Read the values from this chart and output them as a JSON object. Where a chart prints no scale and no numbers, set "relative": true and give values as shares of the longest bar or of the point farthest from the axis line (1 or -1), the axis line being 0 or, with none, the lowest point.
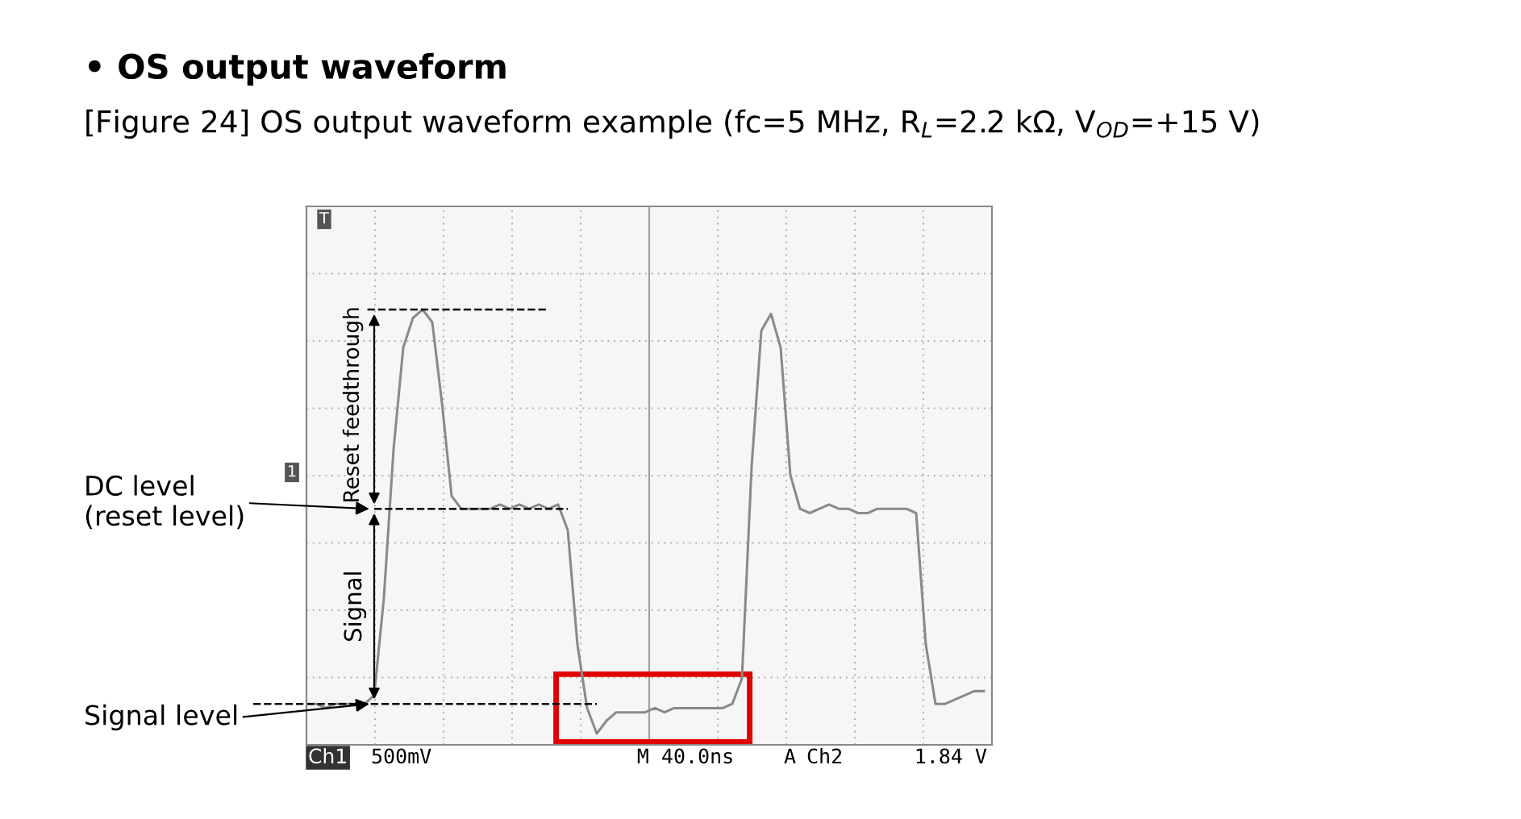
{
  "chart_data": {
    "type": "line",
    "title": "• OS output waveform",
    "subtitle": "[Figure 24] OS output waveform example (fc=5 MHz, R$_{L}$=2.2 kΩ, V$_{OD}$=+15 V)",
    "relative": true,
    "grid": true,
    "marker": "none",
    "line_style": "solid",
    "categories": [
      null,
      null,
      null,
      null,
      null,
      null,
      null,
      null,
      null,
      null,
      null,
      null,
      null,
      null,
      null,
      null,
      null,
      null,
      null,
      null,
      null,
      null,
      null,
      null,
      null,
      null,
      null,
      null,
      null,
      null,
      null,
      null,
      null,
      null,
      null,
      null,
      null,
      null,
      null,
      null,
      null,
      null,
      null,
      null,
      null,
      null,
      null,
      null,
      null,
      null,
      null,
      null,
      null,
      null,
      null,
      null,
      null,
      null,
      null,
      null,
      null,
      null,
      null,
      null,
      null,
      null,
      null,
      null,
      null,
      null,
      null
    ],
    "series": [
      {
        "color": "#8a8a8a",
        "values": [
          0.07,
          0.07,
          0.06,
          0.07,
          0.07,
          0.07,
          0.07,
          0.09,
          0.32,
          0.67,
          0.91,
          0.98,
          1,
          0.97,
          0.78,
          0.56,
          0.53,
          0.53,
          0.53,
          0.53,
          0.54,
          0.53,
          0.54,
          0.53,
          0.54,
          0.53,
          0.54,
          0.48,
          0.21,
          0.06,
          0,
          0.03,
          0.05,
          0.05,
          0.05,
          0.05,
          0.06,
          0.05,
          0.06,
          0.06,
          0.06,
          0.06,
          0.06,
          0.06,
          0.07,
          0.13,
          0.63,
          0.95,
          0.99,
          0.91,
          0.61,
          0.53,
          0.52,
          0.53,
          0.54,
          0.53,
          0.53,
          0.52,
          0.52,
          0.53,
          0.53,
          0.53,
          0.53,
          0.52,
          0.21,
          0.07,
          0.07,
          0.08,
          0.09,
          0.1,
          0.1
        ]
      }
    ],
    "ref_lines": [
      {
        "axis": "y",
        "value": 1,
        "color": "#000000",
        "line_style": "dashed"
      },
      {
        "axis": "y",
        "value": 0.53,
        "color": "#000000",
        "line_style": "dashed"
      },
      {
        "axis": "y",
        "value": 0.07,
        "color": "#000000",
        "line_style": "dashed"
      }
    ],
    "annotations": [
      "Reset feedthrough",
      "Signal",
      "DC level\n(reset level)",
      "Signal level",
      "Ch1",
      "500mV",
      "M 40.0ns",
      "A",
      "Ch2",
      "1.84 V",
      "T",
      "1"
    ]
  }
}
